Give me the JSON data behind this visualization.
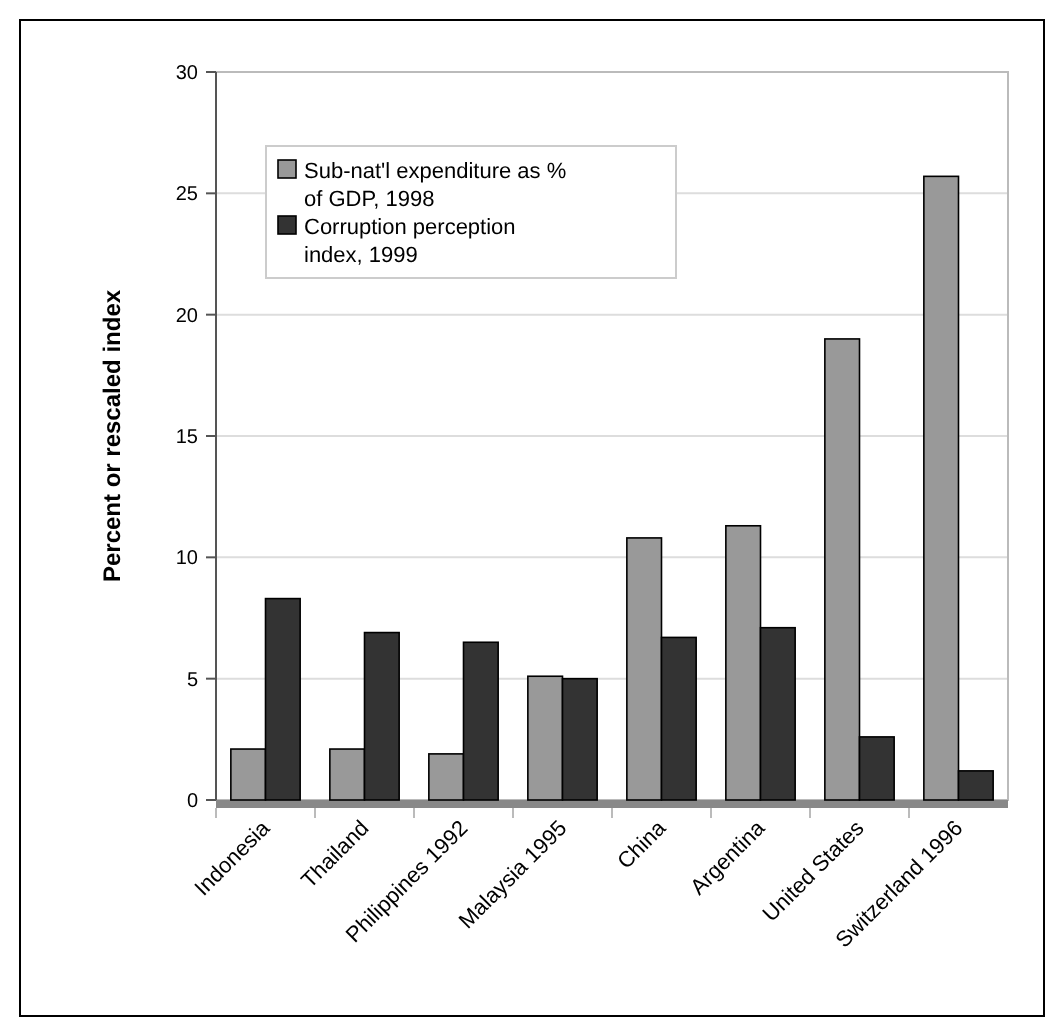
{
  "chart_data": {
    "type": "bar",
    "ylabel": "Percent or rescaled index",
    "categories": [
      "Indonesia",
      "Thailand",
      "Philippines 1992",
      "Malaysia 1995",
      "China",
      "Argentina",
      "United States",
      "Switzerland 1996"
    ],
    "series": [
      {
        "name": "Sub-nat'l expenditure as % of GDP, 1998",
        "color": "#999999",
        "values": [
          2.1,
          2.1,
          1.9,
          5.1,
          10.8,
          11.3,
          19,
          25.7
        ]
      },
      {
        "name": "Corruption perception index, 1999",
        "color": "#333333",
        "values": [
          8.3,
          6.9,
          6.5,
          5.0,
          6.7,
          7.1,
          2.6,
          1.2
        ]
      }
    ],
    "ylim": [
      0,
      30
    ],
    "yticks": [
      0,
      5,
      10,
      15,
      20,
      25,
      30
    ],
    "grid": "y",
    "legend": "top left"
  }
}
